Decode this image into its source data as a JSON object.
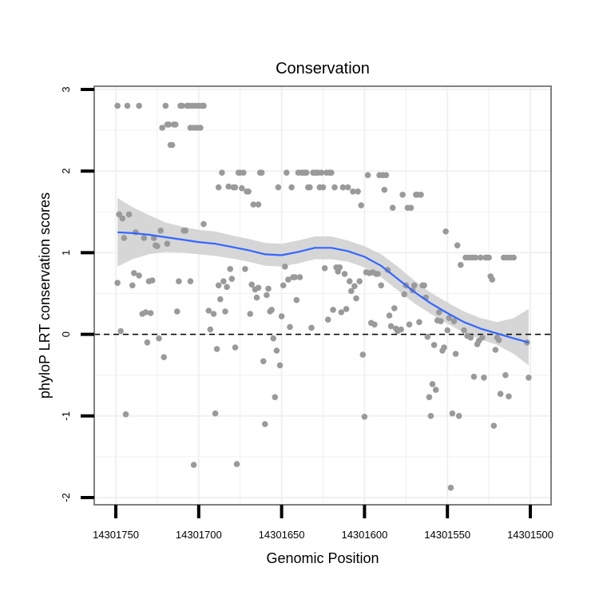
{
  "chart_data": {
    "type": "scatter",
    "title": "Conservation",
    "xlabel": "Genomic Position",
    "ylabel": "phyloP LRT conservation scores",
    "x_reversed": true,
    "xlim": [
      14301500,
      14301750
    ],
    "ylim": [
      -2,
      3
    ],
    "x_ticks": [
      14301750,
      14301700,
      14301650,
      14301600,
      14301550,
      14301500
    ],
    "y_ticks": [
      -2,
      -1,
      0,
      1,
      2,
      3
    ],
    "reference_line": {
      "y": 0,
      "style": "dashed"
    },
    "colors": {
      "points": "#9a9a9a",
      "smooth": "#3366ff",
      "band": "#d6d6d6",
      "grid": "#f0f0f0",
      "panel_border": "#808080"
    },
    "smooth": [
      {
        "x": 14301749,
        "y": 1.25,
        "lo": 0.83,
        "hi": 1.67
      },
      {
        "x": 14301740,
        "y": 1.24,
        "lo": 0.92,
        "hi": 1.56
      },
      {
        "x": 14301730,
        "y": 1.22,
        "lo": 0.98,
        "hi": 1.46
      },
      {
        "x": 14301720,
        "y": 1.19,
        "lo": 1.01,
        "hi": 1.37
      },
      {
        "x": 14301710,
        "y": 1.16,
        "lo": 1.0,
        "hi": 1.32
      },
      {
        "x": 14301700,
        "y": 1.13,
        "lo": 0.98,
        "hi": 1.28
      },
      {
        "x": 14301690,
        "y": 1.11,
        "lo": 0.96,
        "hi": 1.26
      },
      {
        "x": 14301680,
        "y": 1.07,
        "lo": 0.93,
        "hi": 1.21
      },
      {
        "x": 14301670,
        "y": 1.03,
        "lo": 0.89,
        "hi": 1.17
      },
      {
        "x": 14301660,
        "y": 0.98,
        "lo": 0.84,
        "hi": 1.12
      },
      {
        "x": 14301650,
        "y": 0.97,
        "lo": 0.83,
        "hi": 1.11
      },
      {
        "x": 14301640,
        "y": 1.01,
        "lo": 0.87,
        "hi": 1.15
      },
      {
        "x": 14301630,
        "y": 1.06,
        "lo": 0.92,
        "hi": 1.2
      },
      {
        "x": 14301620,
        "y": 1.06,
        "lo": 0.92,
        "hi": 1.2
      },
      {
        "x": 14301610,
        "y": 1.02,
        "lo": 0.89,
        "hi": 1.15
      },
      {
        "x": 14301600,
        "y": 0.95,
        "lo": 0.82,
        "hi": 1.08
      },
      {
        "x": 14301590,
        "y": 0.84,
        "lo": 0.7,
        "hi": 0.98
      },
      {
        "x": 14301580,
        "y": 0.68,
        "lo": 0.54,
        "hi": 0.83
      },
      {
        "x": 14301570,
        "y": 0.52,
        "lo": 0.38,
        "hi": 0.66
      },
      {
        "x": 14301560,
        "y": 0.38,
        "lo": 0.25,
        "hi": 0.51
      },
      {
        "x": 14301550,
        "y": 0.26,
        "lo": 0.13,
        "hi": 0.39
      },
      {
        "x": 14301540,
        "y": 0.15,
        "lo": 0.02,
        "hi": 0.28
      },
      {
        "x": 14301530,
        "y": 0.07,
        "lo": -0.06,
        "hi": 0.2
      },
      {
        "x": 14301520,
        "y": 0.01,
        "lo": -0.13,
        "hi": 0.15
      },
      {
        "x": 14301510,
        "y": -0.05,
        "lo": -0.24,
        "hi": 0.2
      },
      {
        "x": 14301501,
        "y": -0.1,
        "lo": -0.38,
        "hi": 0.31
      }
    ],
    "points": [
      {
        "x": 14301749,
        "y": 2.8
      },
      {
        "x": 14301743,
        "y": 2.8
      },
      {
        "x": 14301736,
        "y": 2.8
      },
      {
        "x": 14301749,
        "y": 0.63
      },
      {
        "x": 14301748,
        "y": 1.47
      },
      {
        "x": 14301746,
        "y": 1.42
      },
      {
        "x": 14301747,
        "y": 0.04
      },
      {
        "x": 14301744,
        "y": -0.98
      },
      {
        "x": 14301745,
        "y": 1.18
      },
      {
        "x": 14301742,
        "y": 1.47
      },
      {
        "x": 14301740,
        "y": 0.6
      },
      {
        "x": 14301739,
        "y": 0.75
      },
      {
        "x": 14301738,
        "y": 1.25
      },
      {
        "x": 14301736,
        "y": 0.72
      },
      {
        "x": 14301734,
        "y": 0.25
      },
      {
        "x": 14301733,
        "y": 1.18
      },
      {
        "x": 14301732,
        "y": 0.27
      },
      {
        "x": 14301731,
        "y": -0.1
      },
      {
        "x": 14301730,
        "y": 0.65
      },
      {
        "x": 14301729,
        "y": 0.26
      },
      {
        "x": 14301728,
        "y": 0.66
      },
      {
        "x": 14301727,
        "y": 1.18
      },
      {
        "x": 14301726,
        "y": 1.09
      },
      {
        "x": 14301725,
        "y": 1.08
      },
      {
        "x": 14301724,
        "y": -0.05
      },
      {
        "x": 14301723,
        "y": 1.27
      },
      {
        "x": 14301722,
        "y": 2.53
      },
      {
        "x": 14301721,
        "y": -0.28
      },
      {
        "x": 14301720,
        "y": 2.8
      },
      {
        "x": 14301719,
        "y": 2.57
      },
      {
        "x": 14301718,
        "y": 2.57
      },
      {
        "x": 14301717,
        "y": 2.32
      },
      {
        "x": 14301716,
        "y": 2.32
      },
      {
        "x": 14301715,
        "y": 2.57
      },
      {
        "x": 14301714,
        "y": 2.57
      },
      {
        "x": 14301719,
        "y": 1.11
      },
      {
        "x": 14301713,
        "y": 0.28
      },
      {
        "x": 14301712,
        "y": 0.65
      },
      {
        "x": 14301711,
        "y": 2.8
      },
      {
        "x": 14301710,
        "y": 2.8
      },
      {
        "x": 14301709,
        "y": 1.27
      },
      {
        "x": 14301708,
        "y": 1.27
      },
      {
        "x": 14301707,
        "y": 2.8
      },
      {
        "x": 14301706,
        "y": 2.8
      },
      {
        "x": 14301705,
        "y": 0.65
      },
      {
        "x": 14301705,
        "y": 2.53
      },
      {
        "x": 14301704,
        "y": 2.8
      },
      {
        "x": 14301703,
        "y": 2.53
      },
      {
        "x": 14301703,
        "y": -1.6
      },
      {
        "x": 14301702,
        "y": 2.8
      },
      {
        "x": 14301701,
        "y": 2.53
      },
      {
        "x": 14301700,
        "y": 2.8
      },
      {
        "x": 14301699,
        "y": 2.53
      },
      {
        "x": 14301698,
        "y": 2.8
      },
      {
        "x": 14301697,
        "y": 1.35
      },
      {
        "x": 14301697,
        "y": 2.8
      },
      {
        "x": 14301694,
        "y": 0.29
      },
      {
        "x": 14301693,
        "y": 0.06
      },
      {
        "x": 14301691,
        "y": 0.25
      },
      {
        "x": 14301690,
        "y": -0.97
      },
      {
        "x": 14301689,
        "y": -0.18
      },
      {
        "x": 14301688,
        "y": 1.8
      },
      {
        "x": 14301688,
        "y": 0.6
      },
      {
        "x": 14301687,
        "y": 0.43
      },
      {
        "x": 14301686,
        "y": 1.98
      },
      {
        "x": 14301685,
        "y": 0.65
      },
      {
        "x": 14301684,
        "y": 0.28
      },
      {
        "x": 14301683,
        "y": 0.58
      },
      {
        "x": 14301682,
        "y": 1.81
      },
      {
        "x": 14301681,
        "y": 0.8
      },
      {
        "x": 14301680,
        "y": 0.68
      },
      {
        "x": 14301679,
        "y": 1.8
      },
      {
        "x": 14301678,
        "y": -0.16
      },
      {
        "x": 14301678,
        "y": 1.8
      },
      {
        "x": 14301677,
        "y": -1.59
      },
      {
        "x": 14301676,
        "y": 1.98
      },
      {
        "x": 14301675,
        "y": 1.98
      },
      {
        "x": 14301674,
        "y": 1.79
      },
      {
        "x": 14301673,
        "y": 1.98
      },
      {
        "x": 14301672,
        "y": 0.8
      },
      {
        "x": 14301671,
        "y": 1.75
      },
      {
        "x": 14301670,
        "y": 1.75
      },
      {
        "x": 14301669,
        "y": 0.25
      },
      {
        "x": 14301668,
        "y": 0.61
      },
      {
        "x": 14301667,
        "y": 1.59
      },
      {
        "x": 14301666,
        "y": 0.55
      },
      {
        "x": 14301665,
        "y": 0.45
      },
      {
        "x": 14301664,
        "y": 0.57
      },
      {
        "x": 14301664,
        "y": 1.59
      },
      {
        "x": 14301663,
        "y": 1.98
      },
      {
        "x": 14301662,
        "y": 1.98
      },
      {
        "x": 14301661,
        "y": -0.33
      },
      {
        "x": 14301660,
        "y": -1.1
      },
      {
        "x": 14301659,
        "y": 0.48
      },
      {
        "x": 14301658,
        "y": 0.56
      },
      {
        "x": 14301657,
        "y": 0.28
      },
      {
        "x": 14301656,
        "y": 0.3
      },
      {
        "x": 14301655,
        "y": -0.05
      },
      {
        "x": 14301654,
        "y": -0.77
      },
      {
        "x": 14301653,
        "y": -0.2
      },
      {
        "x": 14301652,
        "y": 1.8
      },
      {
        "x": 14301651,
        "y": -0.38
      },
      {
        "x": 14301650,
        "y": 0.22
      },
      {
        "x": 14301649,
        "y": 0.6
      },
      {
        "x": 14301648,
        "y": 0.83
      },
      {
        "x": 14301647,
        "y": 1.98
      },
      {
        "x": 14301646,
        "y": 0.67
      },
      {
        "x": 14301645,
        "y": 0.09
      },
      {
        "x": 14301644,
        "y": 1.8
      },
      {
        "x": 14301643,
        "y": 0.7
      },
      {
        "x": 14301642,
        "y": 0.7
      },
      {
        "x": 14301641,
        "y": 0.42
      },
      {
        "x": 14301640,
        "y": 1.98
      },
      {
        "x": 14301639,
        "y": 0.7
      },
      {
        "x": 14301638,
        "y": 1.98
      },
      {
        "x": 14301637,
        "y": 1.98
      },
      {
        "x": 14301636,
        "y": 1.98
      },
      {
        "x": 14301635,
        "y": 1.98
      },
      {
        "x": 14301634,
        "y": 1.8
      },
      {
        "x": 14301633,
        "y": 1.8
      },
      {
        "x": 14301632,
        "y": 0.08
      },
      {
        "x": 14301631,
        "y": 1.98
      },
      {
        "x": 14301630,
        "y": 1.98
      },
      {
        "x": 14301629,
        "y": 1.98
      },
      {
        "x": 14301628,
        "y": 1.98
      },
      {
        "x": 14301627,
        "y": 1.8
      },
      {
        "x": 14301626,
        "y": 1.98
      },
      {
        "x": 14301625,
        "y": 1.8
      },
      {
        "x": 14301624,
        "y": 0.81
      },
      {
        "x": 14301623,
        "y": 1.98
      },
      {
        "x": 14301622,
        "y": 0.18
      },
      {
        "x": 14301621,
        "y": 1.98
      },
      {
        "x": 14301620,
        "y": 1.98
      },
      {
        "x": 14301619,
        "y": 0.3
      },
      {
        "x": 14301618,
        "y": 1.8
      },
      {
        "x": 14301617,
        "y": 0.82
      },
      {
        "x": 14301616,
        "y": 0.77
      },
      {
        "x": 14301615,
        "y": 0.82
      },
      {
        "x": 14301614,
        "y": 0.27
      },
      {
        "x": 14301613,
        "y": 1.8
      },
      {
        "x": 14301612,
        "y": 0.74
      },
      {
        "x": 14301611,
        "y": 0.31
      },
      {
        "x": 14301610,
        "y": 1.8
      },
      {
        "x": 14301609,
        "y": 0.65
      },
      {
        "x": 14301608,
        "y": 0.53
      },
      {
        "x": 14301607,
        "y": 1.75
      },
      {
        "x": 14301606,
        "y": 0.59
      },
      {
        "x": 14301605,
        "y": 0.44
      },
      {
        "x": 14301604,
        "y": 1.75
      },
      {
        "x": 14301603,
        "y": 0.65
      },
      {
        "x": 14301602,
        "y": 1.58
      },
      {
        "x": 14301601,
        "y": -0.25
      },
      {
        "x": 14301600,
        "y": -1.01
      },
      {
        "x": 14301599,
        "y": 0.76
      },
      {
        "x": 14301598,
        "y": 1.95
      },
      {
        "x": 14301597,
        "y": 0.75
      },
      {
        "x": 14301596,
        "y": 0.14
      },
      {
        "x": 14301595,
        "y": 0.76
      },
      {
        "x": 14301594,
        "y": 0.12
      },
      {
        "x": 14301593,
        "y": 0.74
      },
      {
        "x": 14301592,
        "y": 0.74
      },
      {
        "x": 14301591,
        "y": 1.95
      },
      {
        "x": 14301590,
        "y": 0.6
      },
      {
        "x": 14301589,
        "y": 1.95
      },
      {
        "x": 14301588,
        "y": 1.77
      },
      {
        "x": 14301587,
        "y": 1.95
      },
      {
        "x": 14301586,
        "y": 0.79
      },
      {
        "x": 14301585,
        "y": 0.23
      },
      {
        "x": 14301584,
        "y": 0.1
      },
      {
        "x": 14301583,
        "y": 1.55
      },
      {
        "x": 14301582,
        "y": 0.32
      },
      {
        "x": 14301581,
        "y": 0.07
      },
      {
        "x": 14301580,
        "y": 0.04
      },
      {
        "x": 14301578,
        "y": 0.06
      },
      {
        "x": 14301577,
        "y": 1.71
      },
      {
        "x": 14301576,
        "y": 0.49
      },
      {
        "x": 14301575,
        "y": 0.6
      },
      {
        "x": 14301574,
        "y": 1.55
      },
      {
        "x": 14301573,
        "y": 0.12
      },
      {
        "x": 14301572,
        "y": 1.55
      },
      {
        "x": 14301571,
        "y": 0.54
      },
      {
        "x": 14301570,
        "y": 0.6
      },
      {
        "x": 14301569,
        "y": 1.71
      },
      {
        "x": 14301568,
        "y": 1.71
      },
      {
        "x": 14301567,
        "y": 0.15
      },
      {
        "x": 14301566,
        "y": 1.71
      },
      {
        "x": 14301565,
        "y": 0.6
      },
      {
        "x": 14301564,
        "y": 0.6
      },
      {
        "x": 14301563,
        "y": 0.45
      },
      {
        "x": 14301562,
        "y": -0.03
      },
      {
        "x": 14301561,
        "y": -0.77
      },
      {
        "x": 14301560,
        "y": -1.0
      },
      {
        "x": 14301559,
        "y": -0.61
      },
      {
        "x": 14301558,
        "y": -0.13
      },
      {
        "x": 14301557,
        "y": -0.68
      },
      {
        "x": 14301556,
        "y": 0.17
      },
      {
        "x": 14301555,
        "y": 0.27
      },
      {
        "x": 14301554,
        "y": 0.16
      },
      {
        "x": 14301553,
        "y": -0.2
      },
      {
        "x": 14301552,
        "y": -0.16
      },
      {
        "x": 14301551,
        "y": 1.26
      },
      {
        "x": 14301550,
        "y": 0.05
      },
      {
        "x": 14301549,
        "y": 0.2
      },
      {
        "x": 14301548,
        "y": -1.88
      },
      {
        "x": 14301547,
        "y": -0.97
      },
      {
        "x": 14301546,
        "y": 0.16
      },
      {
        "x": 14301545,
        "y": -0.24
      },
      {
        "x": 14301544,
        "y": 1.09
      },
      {
        "x": 14301543,
        "y": -1.0
      },
      {
        "x": 14301542,
        "y": 0.85
      },
      {
        "x": 14301540,
        "y": 0.05
      },
      {
        "x": 14301539,
        "y": 0.94
      },
      {
        "x": 14301538,
        "y": -0.02
      },
      {
        "x": 14301537,
        "y": 0.94
      },
      {
        "x": 14301536,
        "y": -0.04
      },
      {
        "x": 14301535,
        "y": 0.94
      },
      {
        "x": 14301534,
        "y": -0.52
      },
      {
        "x": 14301533,
        "y": 0.94
      },
      {
        "x": 14301532,
        "y": -0.12
      },
      {
        "x": 14301531,
        "y": -0.08
      },
      {
        "x": 14301530,
        "y": 0.94
      },
      {
        "x": 14301529,
        "y": -0.04
      },
      {
        "x": 14301528,
        "y": -0.53
      },
      {
        "x": 14301527,
        "y": 0.94
      },
      {
        "x": 14301526,
        "y": 0.94
      },
      {
        "x": 14301525,
        "y": 0.94
      },
      {
        "x": 14301524,
        "y": 0.71
      },
      {
        "x": 14301523,
        "y": 0.67
      },
      {
        "x": 14301522,
        "y": -1.12
      },
      {
        "x": 14301521,
        "y": -0.19
      },
      {
        "x": 14301520,
        "y": -0.04
      },
      {
        "x": 14301519,
        "y": -0.07
      },
      {
        "x": 14301518,
        "y": -0.73
      },
      {
        "x": 14301516,
        "y": 0.94
      },
      {
        "x": 14301515,
        "y": -0.5
      },
      {
        "x": 14301514,
        "y": 0.94
      },
      {
        "x": 14301513,
        "y": -0.76
      },
      {
        "x": 14301512,
        "y": 0.94
      },
      {
        "x": 14301510,
        "y": 0.94
      },
      {
        "x": 14301502,
        "y": -0.1
      },
      {
        "x": 14301501,
        "y": -0.53
      }
    ]
  }
}
